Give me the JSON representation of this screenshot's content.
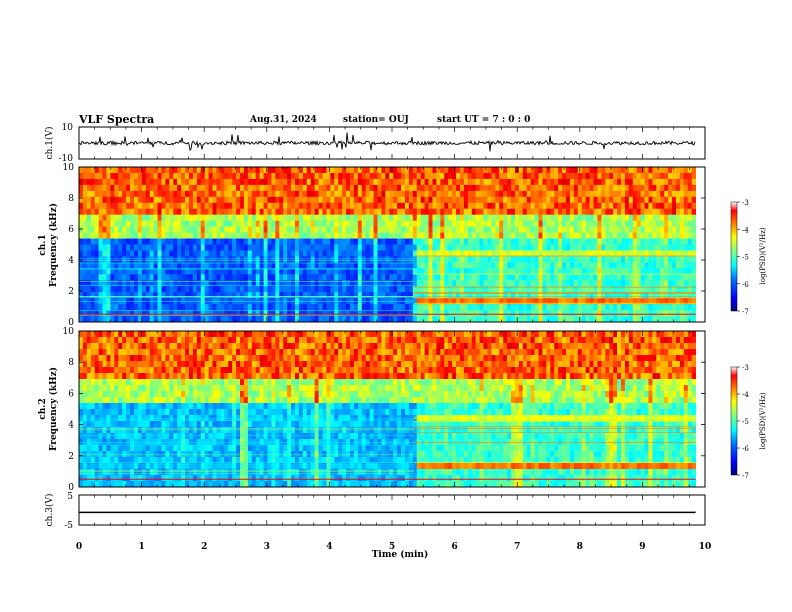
{
  "header": {
    "title": "VLF Spectra",
    "date": "Aug.31, 2024",
    "station": "station= OUJ",
    "start_ut": "start UT =  7 : 0 : 0"
  },
  "colors": {
    "spectrum": [
      "#00007f",
      "#0000ff",
      "#007fff",
      "#00ffff",
      "#7fff7f",
      "#ffff00",
      "#ff7f00",
      "#ff0000",
      "#7f0000"
    ],
    "trace": "#000000"
  },
  "chart_data": [
    {
      "type": "line",
      "panel": "ch1-waveform",
      "ylabel": "ch.1(V)",
      "ylim": [
        -10,
        10
      ],
      "y_tick_labels": [
        "10",
        "-10"
      ],
      "note_values": "waveform noise around ~0 V with spiky bursts"
    },
    {
      "type": "heatmap",
      "panel": "ch1-spectrogram",
      "ylabel_line1": "ch.1",
      "ylabel_line2": "Frequency (kHz)",
      "ylim": [
        0,
        10
      ],
      "y_tick_labels": [
        "0",
        "2",
        "4",
        "6",
        "8",
        "10"
      ],
      "colorbar": {
        "label": "log(PSD)(V²/Hz)",
        "range": [
          -7,
          -3
        ],
        "ticks": [
          "-3",
          "-4",
          "-5",
          "-6",
          "-7"
        ]
      }
    },
    {
      "type": "heatmap",
      "panel": "ch2-spectrogram",
      "ylabel_line1": "ch.2",
      "ylabel_line2": "Frequency (kHz)",
      "ylim": [
        0,
        10
      ],
      "y_tick_labels": [
        "0",
        "2",
        "4",
        "6",
        "8",
        "10"
      ],
      "colorbar": {
        "label": "log(PSD)(V²/Hz)",
        "range": [
          -7,
          -3
        ],
        "ticks": [
          "-3",
          "-4",
          "-5",
          "-6",
          "-7"
        ]
      }
    },
    {
      "type": "line",
      "panel": "ch3-waveform",
      "ylabel": "ch.3(V)",
      "ylim": [
        -5,
        5
      ],
      "y_tick_labels": [
        "5",
        "-5"
      ],
      "x": [
        0,
        9.85
      ],
      "y": [
        -0.8,
        -0.8
      ]
    }
  ],
  "xaxis": {
    "label": "Time (min)",
    "range": [
      0,
      10
    ],
    "tick_labels": [
      "0",
      "1",
      "2",
      "3",
      "4",
      "5",
      "6",
      "7",
      "8",
      "9",
      "10"
    ],
    "data_end": 9.85,
    "transition": 5.35
  }
}
